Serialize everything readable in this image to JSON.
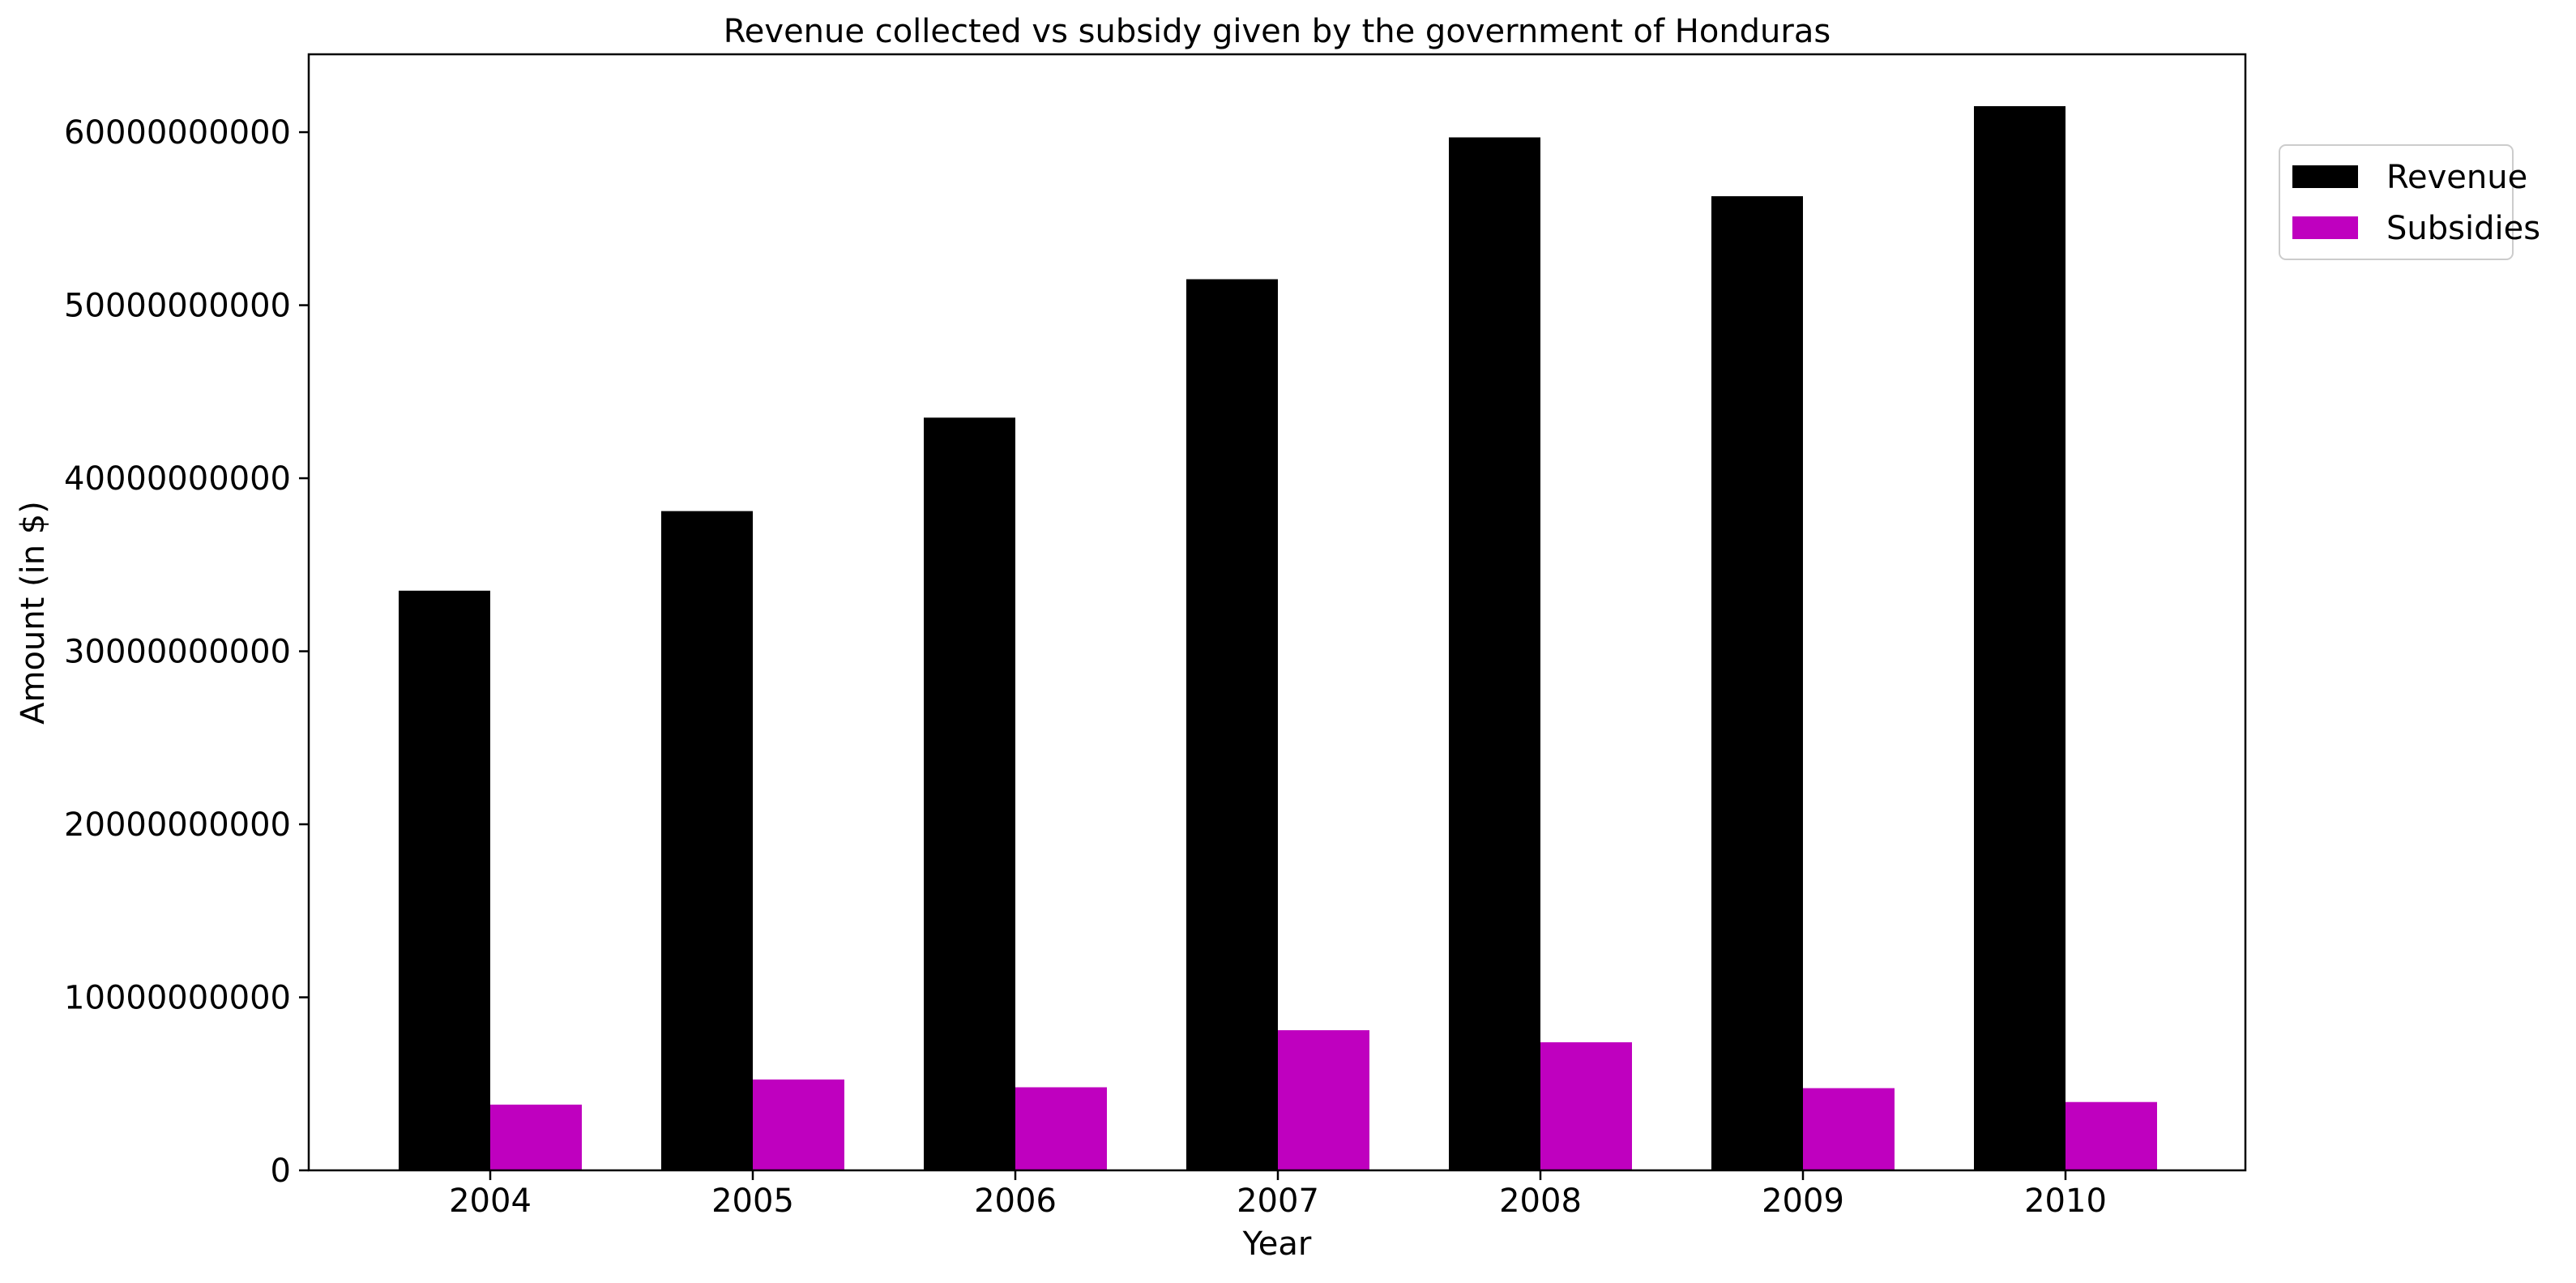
{
  "chart_data": {
    "type": "bar",
    "title": "Revenue collected vs subsidy given by the government of Honduras",
    "xlabel": "Year",
    "ylabel": "Amount (in $)",
    "categories": [
      "2004",
      "2005",
      "2006",
      "2007",
      "2008",
      "2009",
      "2010"
    ],
    "series": [
      {
        "name": "Revenue",
        "color": "#000000",
        "values": [
          33500000000,
          38100000000,
          43500000000,
          51500000000,
          59700000000,
          56300000000,
          61500000000
        ]
      },
      {
        "name": "Subsidies",
        "color": "#bf00bf",
        "values": [
          3800000000,
          5250000000,
          4800000000,
          8100000000,
          7400000000,
          4750000000,
          3950000000
        ]
      }
    ],
    "ylim": [
      0,
      64500000000
    ],
    "yticks": [
      "0",
      "10000000000",
      "20000000000",
      "30000000000",
      "40000000000",
      "50000000000",
      "60000000000"
    ],
    "grid": false,
    "legend_position": "upper-right-outside"
  }
}
